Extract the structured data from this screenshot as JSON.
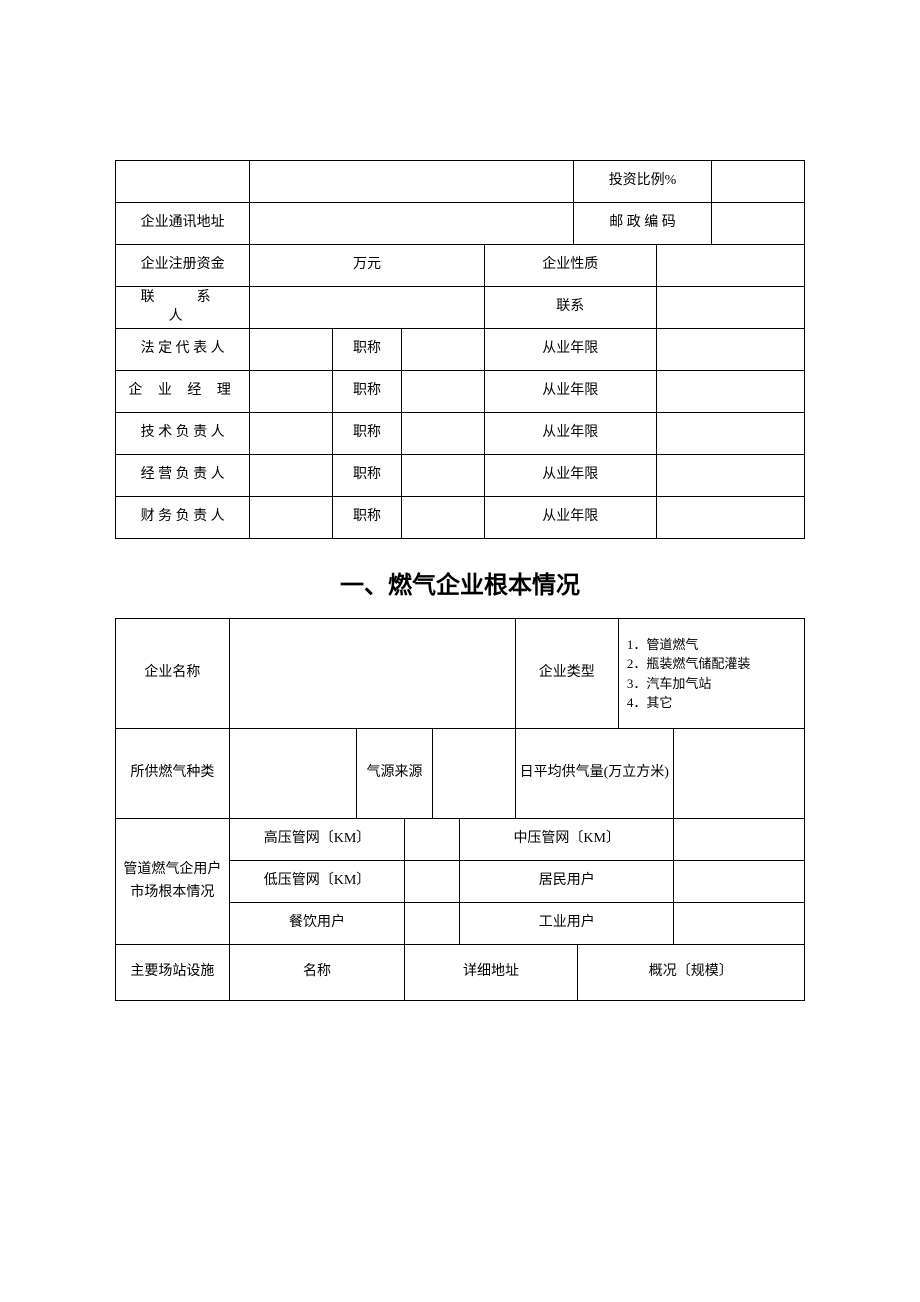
{
  "table1": {
    "investRatio": "投资比例%",
    "address": "企业通讯地址",
    "postcode": "邮 政 编 码",
    "regCapital": "企业注册资金",
    "wanyuan": "万元",
    "entNature": "企业性质",
    "contact": "联　系　人",
    "contactPhone": "联系",
    "legalRep": "法 定 代 表 人",
    "manager": "企 业 经 理",
    "techLead": "技 术 负 责 人",
    "bizLead": "经 营 负 责 人",
    "finLead": "财 务 负 责 人",
    "title": "职称",
    "years": "从业年限"
  },
  "heading": "一、燃气企业根本情况",
  "table2": {
    "entName": "企业名称",
    "entType": "企业类型",
    "typeOptions": "1．管道燃气\n2．瓶装燃气储配灌装\n3．汽车加气站\n4．其它",
    "gasKind": "所供燃气种类",
    "gasSource": "气源来源",
    "dailyAvg": "日平均供气量(万立方米)",
    "pipeUserMarket": "管道燃气企用户市场根本情况",
    "highPressure": "高压管网〔KM〕",
    "midPressure": "中压管网〔KM〕",
    "lowPressure": "低压管网〔KM〕",
    "residentUser": "居民用户",
    "cateringUser": "餐饮用户",
    "industrialUser": "工业用户",
    "mainStation": "主要场站设施",
    "name": "名称",
    "detailAddr": "详细地址",
    "overview": "概况〔规模〕"
  }
}
